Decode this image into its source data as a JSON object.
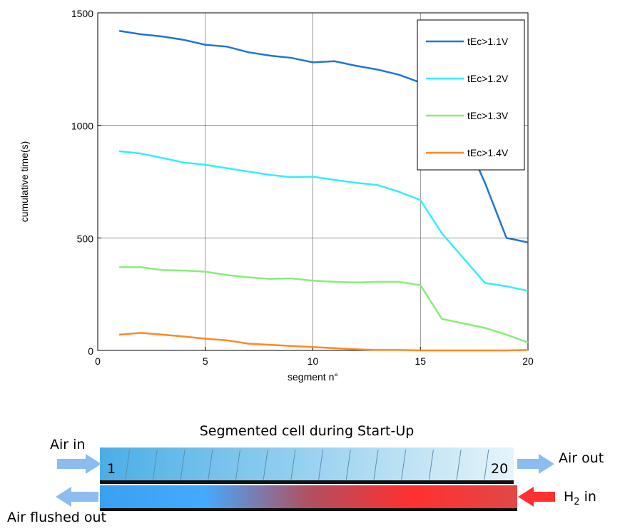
{
  "chart_data": {
    "type": "line",
    "xlabel": "segment n°",
    "ylabel": "cumulative time(s)",
    "x": [
      1,
      2,
      3,
      4,
      5,
      6,
      7,
      8,
      9,
      10,
      11,
      12,
      13,
      14,
      15,
      16,
      17,
      18,
      19,
      20
    ],
    "series": [
      {
        "name": "tEc>1.1V",
        "color": "#1f74d8",
        "values": [
          1420,
          1405,
          1395,
          1380,
          1358,
          1350,
          1325,
          1310,
          1300,
          1280,
          1285,
          1265,
          1248,
          1225,
          1190,
          1110,
          960,
          745,
          500,
          480
        ]
      },
      {
        "name": "tEc>1.2V",
        "color": "#33eeff",
        "values": [
          885,
          875,
          855,
          835,
          825,
          810,
          795,
          780,
          770,
          772,
          758,
          745,
          735,
          705,
          668,
          520,
          410,
          300,
          285,
          265
        ]
      },
      {
        "name": "tEc>1.3V",
        "color": "#88ee77",
        "values": [
          370,
          370,
          357,
          355,
          350,
          335,
          325,
          318,
          320,
          310,
          305,
          302,
          305,
          305,
          290,
          140,
          120,
          100,
          70,
          35
        ]
      },
      {
        "name": "tEc>1.4V",
        "color": "#ff8822",
        "values": [
          70,
          78,
          70,
          62,
          52,
          45,
          30,
          25,
          20,
          15,
          10,
          5,
          2,
          2,
          0,
          0,
          0,
          0,
          0,
          2
        ]
      }
    ],
    "xlim": [
      0,
      20
    ],
    "xticks": [
      0,
      5,
      10,
      15,
      20
    ],
    "ylim": [
      0,
      1500
    ],
    "yticks": [
      0,
      500,
      1000,
      1500
    ],
    "grid": true,
    "legend": "upper right"
  },
  "diagram": {
    "title": "Segmented cell during Start-Up",
    "air_in": "Air in",
    "air_out": "Air out",
    "first_segment": "1",
    "last_segment": "20",
    "h2_in": {
      "main": "H",
      "sub": "2",
      "rest": " in"
    },
    "air_flushed_out": "Air flushed out"
  }
}
